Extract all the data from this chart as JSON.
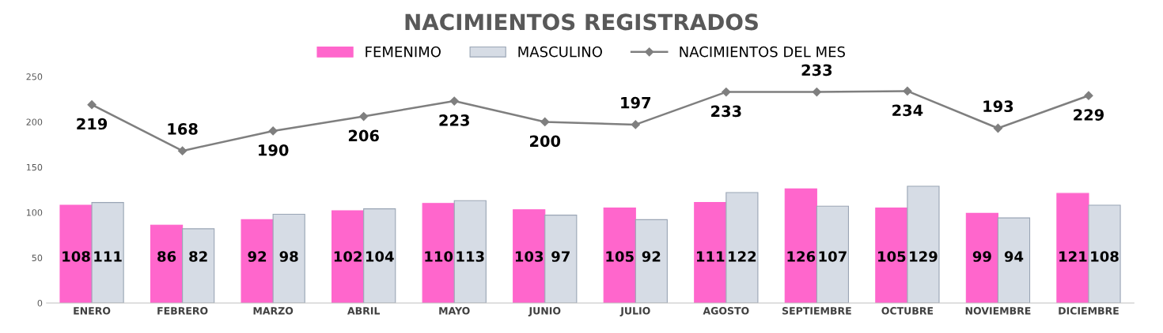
{
  "chart_data": {
    "type": "bar",
    "title": "NACIMIENTOS REGISTRADOS",
    "categories": [
      "ENERO",
      "FEBRERO",
      "MARZO",
      "ABRIL",
      "MAYO",
      "JUNIO",
      "JULIO",
      "AGOSTO",
      "SEPTIEMBRE",
      "OCTUBRE",
      "NOVIEMBRE",
      "DICIEMBRE"
    ],
    "series": [
      {
        "name": "FEMENIMO",
        "color": "#ff66cc",
        "values": [
          108,
          86,
          92,
          102,
          110,
          103,
          105,
          111,
          126,
          105,
          99,
          121
        ]
      },
      {
        "name": "MASCULINO",
        "color": "#d6dce5",
        "values": [
          111,
          82,
          98,
          104,
          113,
          97,
          92,
          122,
          107,
          129,
          94,
          108
        ]
      },
      {
        "name": "NACIMIENTOS DEL MES",
        "type": "line",
        "color": "#7f7f7f",
        "marker": "diamond",
        "values": [
          219,
          168,
          190,
          206,
          223,
          200,
          197,
          233,
          233,
          234,
          193,
          229
        ]
      }
    ],
    "ylim": [
      0,
      250
    ],
    "yticks": [
      0,
      50,
      100,
      150,
      200,
      250
    ],
    "grid": false,
    "legend": "top",
    "data_labels": true
  }
}
